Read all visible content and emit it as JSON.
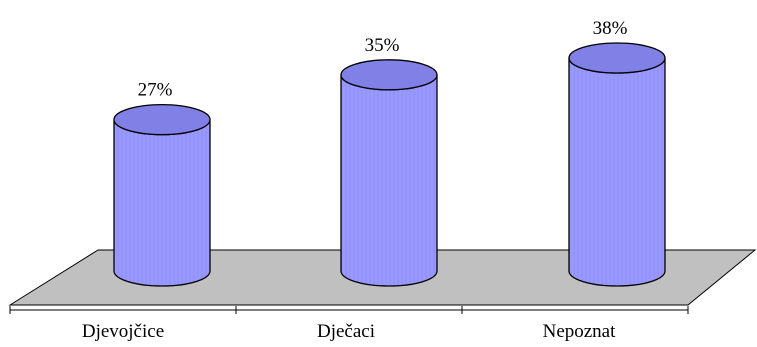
{
  "chart_data": {
    "type": "bar",
    "style": "3d-cylinder",
    "categories": [
      "Djevojčice",
      "Dječaci",
      "Nepoznat"
    ],
    "values": [
      27,
      35,
      38
    ],
    "value_labels": [
      "27%",
      "35%",
      "38%"
    ],
    "ylim": [
      0,
      38
    ],
    "grid": false,
    "legend": "none",
    "colors": {
      "bar_fill": "#9999ff",
      "bar_top": "#8080e6",
      "floor": "#c0c0c0",
      "outline": "#000000"
    }
  }
}
